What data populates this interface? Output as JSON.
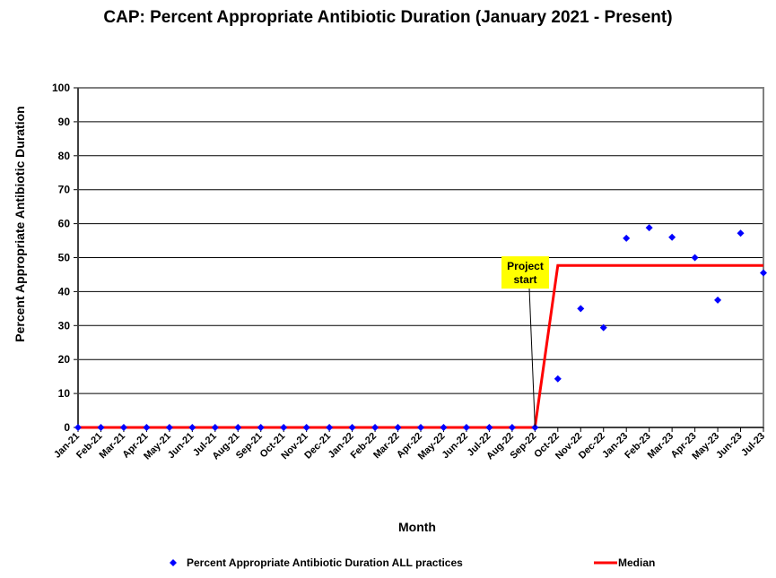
{
  "chart_data": {
    "type": "scatter",
    "title": "CAP: Percent Appropriate Antibiotic Duration (January 2021 - Present)",
    "xlabel": "Month",
    "ylabel": "Percent Appropriate Antibiotic Duration",
    "ylim": [
      0,
      100
    ],
    "yticks": [
      "0",
      "10",
      "20",
      "30",
      "40",
      "50",
      "60",
      "70",
      "80",
      "90",
      "100"
    ],
    "categories": [
      "Jan-21",
      "Feb-21",
      "Mar-21",
      "Apr-21",
      "May-21",
      "Jun-21",
      "Jul-21",
      "Aug-21",
      "Sep-21",
      "Oct-21",
      "Nov-21",
      "Dec-21",
      "Jan-22",
      "Feb-22",
      "Mar-22",
      "Apr-22",
      "May-22",
      "Jun-22",
      "Jul-22",
      "Aug-22",
      "Sep-22",
      "Oct-22",
      "Nov-22",
      "Dec-22",
      "Jan-23",
      "Feb-23",
      "Mar-23",
      "Apr-23",
      "May-23",
      "Jun-23",
      "Jul-23"
    ],
    "grid": true,
    "legend_position": "bottom",
    "series": [
      {
        "name": "Percent Appropriate Antibiotic Duration ALL practices",
        "type": "scatter",
        "color": "#0000ff",
        "values": [
          0,
          0,
          0,
          0,
          0,
          0,
          0,
          0,
          0,
          0,
          0,
          0,
          0,
          0,
          0,
          0,
          0,
          0,
          0,
          0,
          0,
          14.3,
          35,
          29.4,
          55.7,
          58.8,
          56,
          50,
          37.5,
          57.2,
          45.5
        ]
      },
      {
        "name": "Median",
        "type": "line",
        "color": "#ff0000",
        "values": [
          0,
          0,
          0,
          0,
          0,
          0,
          0,
          0,
          0,
          0,
          0,
          0,
          0,
          0,
          0,
          0,
          0,
          0,
          0,
          0,
          0,
          47.7,
          47.7,
          47.7,
          47.7,
          47.7,
          47.7,
          47.7,
          47.7,
          47.7,
          47.7
        ]
      }
    ],
    "annotations": [
      {
        "text_lines": [
          "Project",
          "start"
        ],
        "category": "Sep-22",
        "background": "#ffff00"
      }
    ]
  }
}
